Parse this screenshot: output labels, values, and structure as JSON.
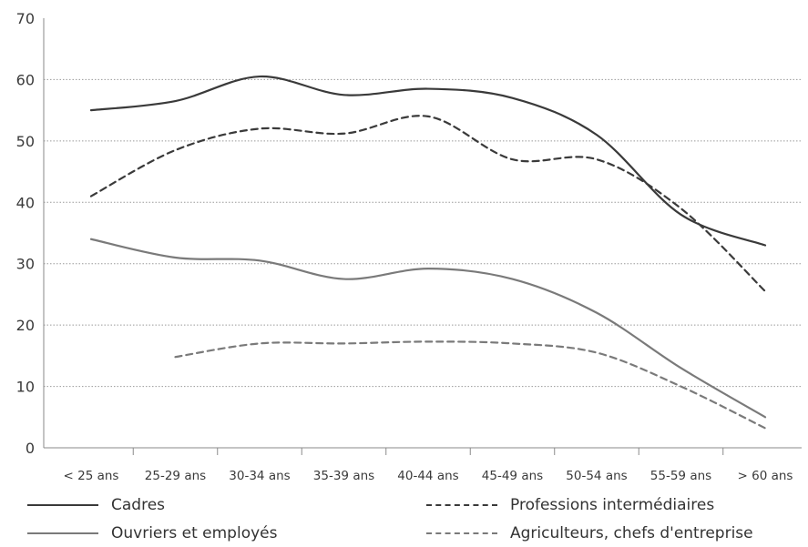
{
  "chart_data": {
    "type": "line",
    "title": "",
    "xlabel": "",
    "ylabel": "",
    "ylim": [
      0,
      70
    ],
    "yticks": [
      0,
      10,
      20,
      30,
      40,
      50,
      60,
      70
    ],
    "grid": true,
    "categories": [
      "< 25 ans",
      "25-29 ans",
      "30-34 ans",
      "35-39 ans",
      "40-44 ans",
      "45-49 ans",
      "50-54 ans",
      "55-59 ans",
      "> 60 ans"
    ],
    "legend_position": "bottom",
    "series": [
      {
        "name": "Cadres",
        "style": "solid",
        "color": "#3a3a3a",
        "values": [
          55,
          56.5,
          60.5,
          57.5,
          58.5,
          57,
          51,
          38,
          33
        ]
      },
      {
        "name": "Professions intermédiaires",
        "style": "dashed",
        "color": "#3a3a3a",
        "values": [
          41,
          48.5,
          52,
          51.2,
          54,
          47,
          47,
          39,
          25.5
        ]
      },
      {
        "name": "Ouvriers et employés",
        "style": "solid",
        "color": "#7a7a7a",
        "values": [
          34,
          31,
          30.5,
          27.5,
          29.2,
          27.5,
          22,
          13,
          5
        ]
      },
      {
        "name": "Agriculteurs, chefs d'entreprise",
        "style": "dashed",
        "color": "#7a7a7a",
        "values": [
          null,
          14.8,
          17,
          17,
          17.3,
          17,
          15.5,
          10,
          3.2
        ]
      }
    ]
  }
}
